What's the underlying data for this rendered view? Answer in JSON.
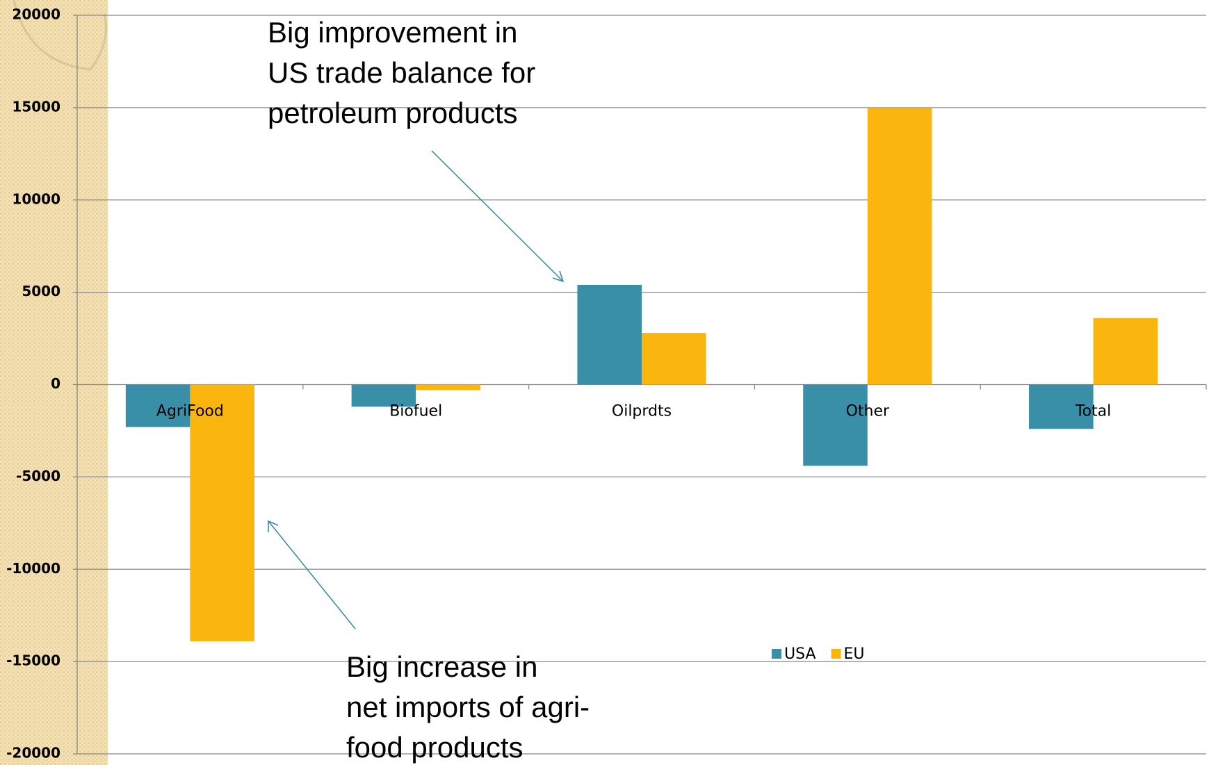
{
  "chart_data": {
    "type": "bar",
    "categories": [
      "AgriFood",
      "Biofuel",
      "Oilprdts",
      "Other",
      "Total"
    ],
    "series": [
      {
        "name": "USA",
        "color": "#3a8fa8",
        "values": [
          -2300,
          -1200,
          5400,
          -4400,
          -2400
        ]
      },
      {
        "name": "EU",
        "color": "#fbb50f",
        "values": [
          -13900,
          -300,
          2800,
          15000,
          3600
        ]
      }
    ],
    "ylim": [
      -20000,
      20000
    ],
    "yticks": [
      -20000,
      -15000,
      -10000,
      -5000,
      0,
      5000,
      10000,
      15000,
      20000
    ],
    "grid": true,
    "annotations": [
      {
        "lines": [
          "Big improvement in",
          "US trade balance for",
          "petroleum products"
        ]
      },
      {
        "lines": [
          "Big increase in",
          "net imports of agri-",
          "food products"
        ]
      }
    ]
  }
}
